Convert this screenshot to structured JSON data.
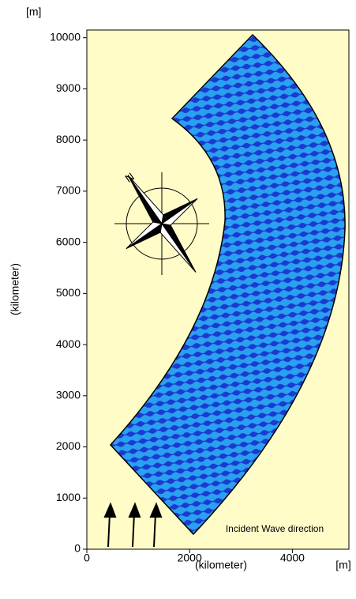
{
  "chart_data": {
    "type": "map",
    "y_unit": "[m]",
    "x_unit": "[m]",
    "x_label": "(kilometer)",
    "y_label": "(kilometer)",
    "annotation": "Incident  Wave direction",
    "xlim": [
      0,
      5100
    ],
    "ylim": [
      0,
      10150
    ],
    "xticks": [
      0,
      2000,
      4000
    ],
    "yticks": [
      0,
      1000,
      2000,
      3000,
      4000,
      5000,
      6000,
      7000,
      8000,
      9000,
      10000
    ],
    "background": "#fffcc8"
  }
}
